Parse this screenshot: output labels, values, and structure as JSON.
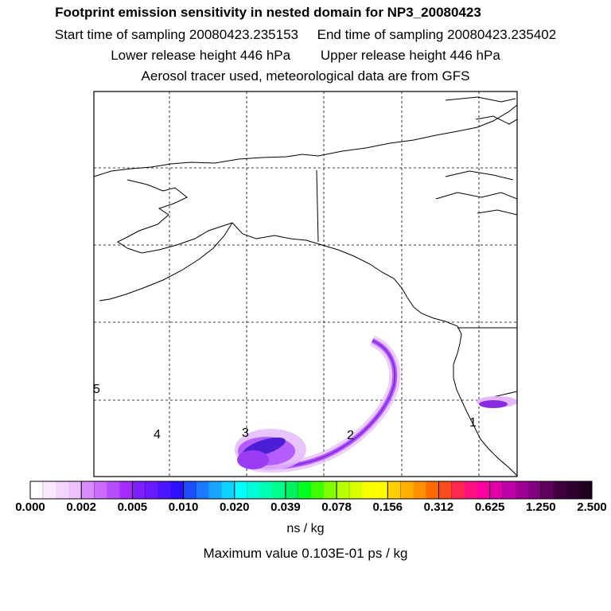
{
  "header": {
    "title": "Footprint emission sensitivity in nested domain for NP3_20080423",
    "line2_left": "Start time of sampling 20080423.235153",
    "line2_right": "End time of sampling 20080423.235402",
    "line3_left": "Lower release height  446 hPa",
    "line3_right": "Upper release height  446 hPa",
    "line4": "Aerosol tracer used, meteorological data are from GFS"
  },
  "map": {
    "point_labels": [
      "1",
      "2",
      "3",
      "4",
      "5"
    ],
    "plume_colors": {
      "dense": "#4b1fd6",
      "mid": "#8a2be2",
      "light": "#b45cff",
      "faint": "#e3b8ff"
    }
  },
  "colorbar": {
    "tick_labels": [
      "0.000",
      "0.002",
      "0.005",
      "0.010",
      "0.020",
      "0.039",
      "0.078",
      "0.156",
      "0.312",
      "0.625",
      "1.250",
      "2.500"
    ],
    "colors": [
      "#ffffff",
      "#fbe8ff",
      "#f5d4ff",
      "#efc0ff",
      "#d98cff",
      "#cc6bff",
      "#b84cff",
      "#a52cff",
      "#7f1fff",
      "#6a1aff",
      "#4b14ff",
      "#2b10ff",
      "#1d4bff",
      "#1a79ff",
      "#16a6ff",
      "#10d2ff",
      "#00ffff",
      "#00ffd8",
      "#00ffb0",
      "#00ff88",
      "#00f060",
      "#00ff20",
      "#40ff00",
      "#80ff00",
      "#b8ff00",
      "#d8ff00",
      "#f5ff00",
      "#ffff00",
      "#ffd000",
      "#ffb000",
      "#ff9000",
      "#ff6a00",
      "#ff4a20",
      "#ff2850",
      "#ff1080",
      "#ff00a0",
      "#e000a8",
      "#c000a8",
      "#a00098",
      "#800080",
      "#600060",
      "#400040",
      "#300030",
      "#200020"
    ],
    "units": "ns / kg",
    "max_value_text": "Maximum value  0.103E-01 ps / kg"
  }
}
